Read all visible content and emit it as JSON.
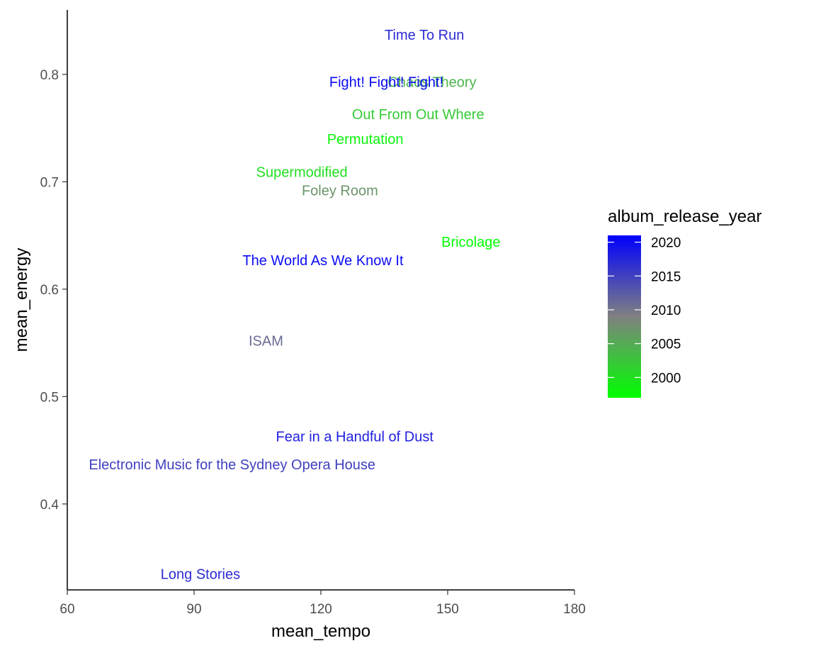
{
  "chart_data": {
    "type": "scatter",
    "xlabel": "mean_tempo",
    "ylabel": "mean_energy",
    "xlim": [
      60,
      180
    ],
    "ylim": [
      0.32,
      0.86
    ],
    "x_ticks": [
      60,
      90,
      120,
      150,
      180
    ],
    "y_ticks": [
      0.4,
      0.5,
      0.6,
      0.7,
      0.8
    ],
    "grid": false,
    "points": [
      {
        "label": "Time To Run",
        "x": 144.5,
        "y": 0.837,
        "year": 2017
      },
      {
        "label": "Chaos Theory",
        "x": 146.3,
        "y": 0.793,
        "year": 2004
      },
      {
        "label": "Fight! Fight! Fight!",
        "x": 135.5,
        "y": 0.793,
        "year": 2020
      },
      {
        "label": "Out From Out Where",
        "x": 143.0,
        "y": 0.763,
        "year": 2002
      },
      {
        "label": "Permutation",
        "x": 130.5,
        "y": 0.74,
        "year": 1998
      },
      {
        "label": "Supermodified",
        "x": 115.5,
        "y": 0.709,
        "year": 2000
      },
      {
        "label": "Foley Room",
        "x": 124.5,
        "y": 0.692,
        "year": 2007
      },
      {
        "label": "Bricolage",
        "x": 155.5,
        "y": 0.644,
        "year": 1997
      },
      {
        "label": "The World As We Know It",
        "x": 120.5,
        "y": 0.627,
        "year": 2020
      },
      {
        "label": "ISAM",
        "x": 107.0,
        "y": 0.552,
        "year": 2011
      },
      {
        "label": "Fear in a Handful of Dust",
        "x": 128.0,
        "y": 0.463,
        "year": 2018
      },
      {
        "label": "Electronic Music for the Sydney Opera House",
        "x": 99.0,
        "y": 0.437,
        "year": 2015
      },
      {
        "label": "Long Stories",
        "x": 91.5,
        "y": 0.335,
        "year": 2017
      }
    ],
    "legend": {
      "title": "album_release_year",
      "placement": "right",
      "ticks": [
        2000,
        2005,
        2010,
        2015,
        2020
      ],
      "range": [
        1997,
        2021
      ],
      "color_low": "#00ff00",
      "color_mid": "#808080",
      "color_high": "#0000ff"
    }
  }
}
